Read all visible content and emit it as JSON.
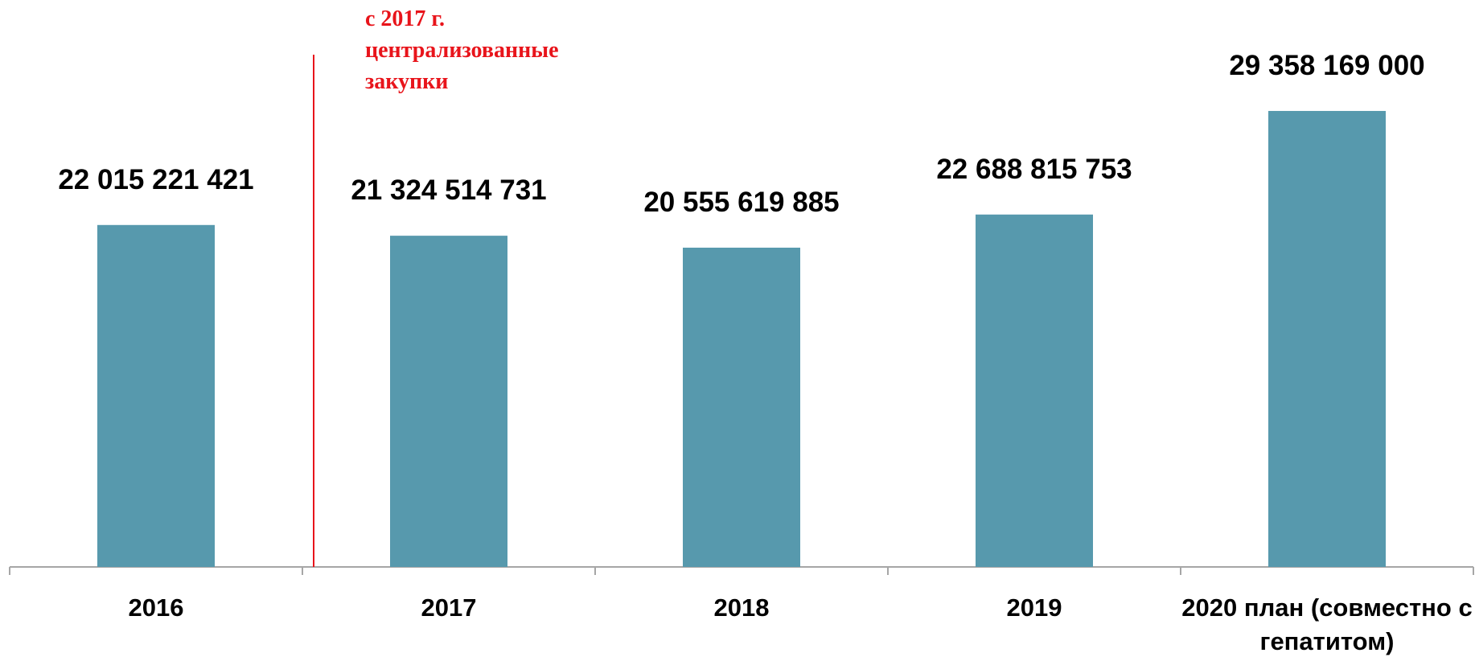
{
  "chart_data": {
    "type": "bar",
    "categories": [
      "2016",
      "2017",
      "2018",
      "2019",
      "2020 план (совместно с гепатитом)"
    ],
    "values": [
      22015221421,
      21324514731,
      20555619885,
      22688815753,
      29358169000
    ],
    "value_labels": [
      "22 015 221 421",
      "21 324 514 731",
      "20 555 619 885",
      "22 688 815 753",
      "29 358 169 000"
    ],
    "color": "#5799ad",
    "ylim": [
      0,
      35000000000
    ],
    "annotation": [
      "с 2017 г.",
      "централизованные",
      "закупки"
    ],
    "annotation_color": "#e8141b"
  }
}
